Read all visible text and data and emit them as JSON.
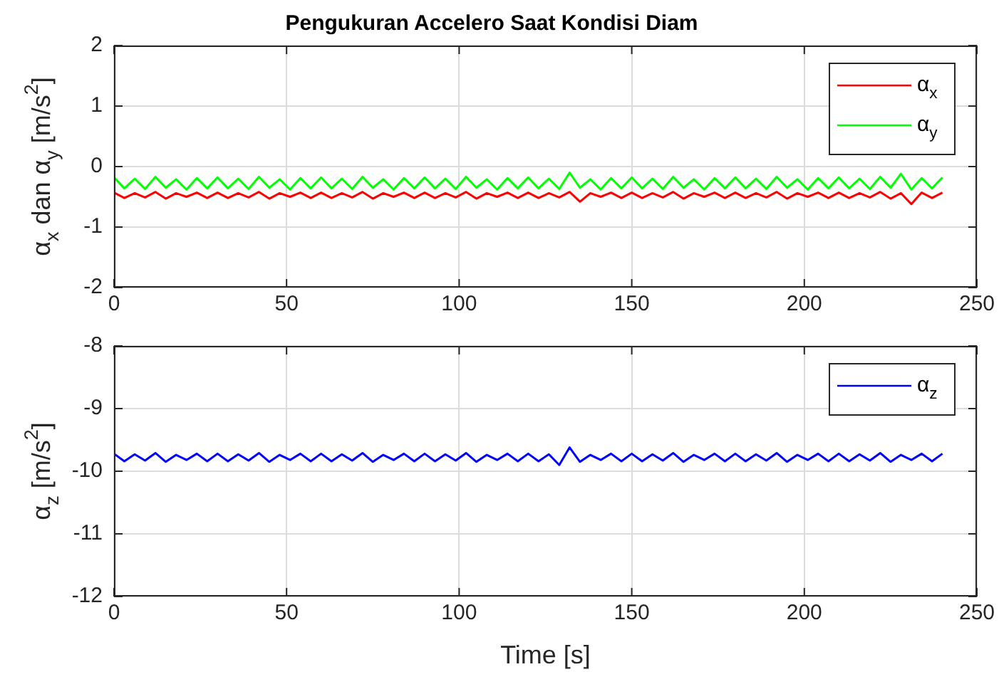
{
  "chart_data": [
    {
      "type": "line",
      "title": "Pengukuran Accelero Saat Kondisi Diam",
      "ylabel": "α$_{x}$ dan α$_{y}$ [m/s$^{2}$]",
      "x": [
        0,
        3,
        6,
        9,
        12,
        15,
        18,
        21,
        24,
        27,
        30,
        33,
        36,
        39,
        42,
        45,
        48,
        51,
        54,
        57,
        60,
        63,
        66,
        69,
        72,
        75,
        78,
        81,
        84,
        87,
        90,
        93,
        96,
        99,
        102,
        105,
        108,
        111,
        114,
        117,
        120,
        123,
        126,
        129,
        132,
        135,
        138,
        141,
        144,
        147,
        150,
        153,
        156,
        159,
        162,
        165,
        168,
        171,
        174,
        177,
        180,
        183,
        186,
        189,
        192,
        195,
        198,
        201,
        204,
        207,
        210,
        213,
        216,
        219,
        222,
        225,
        228,
        231,
        234,
        237,
        240
      ],
      "series": [
        {
          "name": "α$_{x}$",
          "color": "#ff0000",
          "values": [
            -0.43,
            -0.52,
            -0.44,
            -0.51,
            -0.42,
            -0.53,
            -0.44,
            -0.5,
            -0.43,
            -0.52,
            -0.43,
            -0.52,
            -0.44,
            -0.51,
            -0.42,
            -0.53,
            -0.44,
            -0.5,
            -0.43,
            -0.52,
            -0.43,
            -0.52,
            -0.44,
            -0.51,
            -0.42,
            -0.53,
            -0.44,
            -0.5,
            -0.43,
            -0.52,
            -0.43,
            -0.52,
            -0.44,
            -0.51,
            -0.42,
            -0.53,
            -0.44,
            -0.5,
            -0.43,
            -0.52,
            -0.43,
            -0.52,
            -0.44,
            -0.51,
            -0.42,
            -0.58,
            -0.44,
            -0.5,
            -0.43,
            -0.52,
            -0.43,
            -0.52,
            -0.44,
            -0.51,
            -0.42,
            -0.53,
            -0.44,
            -0.5,
            -0.43,
            -0.52,
            -0.43,
            -0.52,
            -0.44,
            -0.51,
            -0.42,
            -0.53,
            -0.44,
            -0.5,
            -0.43,
            -0.52,
            -0.43,
            -0.52,
            -0.44,
            -0.51,
            -0.42,
            -0.53,
            -0.44,
            -0.62,
            -0.43,
            -0.52,
            -0.43
          ]
        },
        {
          "name": "α$_{y}$",
          "color": "#00ff00",
          "values": [
            -0.18,
            -0.36,
            -0.2,
            -0.37,
            -0.17,
            -0.35,
            -0.21,
            -0.38,
            -0.19,
            -0.36,
            -0.18,
            -0.36,
            -0.2,
            -0.37,
            -0.17,
            -0.35,
            -0.21,
            -0.38,
            -0.19,
            -0.36,
            -0.18,
            -0.36,
            -0.2,
            -0.37,
            -0.17,
            -0.35,
            -0.21,
            -0.38,
            -0.19,
            -0.36,
            -0.18,
            -0.36,
            -0.2,
            -0.37,
            -0.17,
            -0.35,
            -0.21,
            -0.38,
            -0.19,
            -0.36,
            -0.18,
            -0.36,
            -0.2,
            -0.37,
            -0.1,
            -0.35,
            -0.21,
            -0.38,
            -0.19,
            -0.36,
            -0.18,
            -0.36,
            -0.2,
            -0.37,
            -0.17,
            -0.35,
            -0.21,
            -0.38,
            -0.19,
            -0.36,
            -0.18,
            -0.36,
            -0.2,
            -0.37,
            -0.17,
            -0.35,
            -0.21,
            -0.38,
            -0.19,
            -0.36,
            -0.18,
            -0.36,
            -0.2,
            -0.37,
            -0.17,
            -0.35,
            -0.12,
            -0.38,
            -0.19,
            -0.36,
            -0.18
          ]
        }
      ],
      "xlim": [
        0,
        250
      ],
      "xticks": [
        0,
        50,
        100,
        150,
        200,
        250
      ],
      "ylim": [
        -2,
        2
      ],
      "yticks": [
        -2,
        -1,
        0,
        1,
        2
      ],
      "grid": true,
      "legend": "top right"
    },
    {
      "type": "line",
      "xlabel": "Time [s]",
      "ylabel": "α$_{z}$ [m/s$^{2}$]",
      "x": [
        0,
        3,
        6,
        9,
        12,
        15,
        18,
        21,
        24,
        27,
        30,
        33,
        36,
        39,
        42,
        45,
        48,
        51,
        54,
        57,
        60,
        63,
        66,
        69,
        72,
        75,
        78,
        81,
        84,
        87,
        90,
        93,
        96,
        99,
        102,
        105,
        108,
        111,
        114,
        117,
        120,
        123,
        126,
        129,
        132,
        135,
        138,
        141,
        144,
        147,
        150,
        153,
        156,
        159,
        162,
        165,
        168,
        171,
        174,
        177,
        180,
        183,
        186,
        189,
        192,
        195,
        198,
        201,
        204,
        207,
        210,
        213,
        216,
        219,
        222,
        225,
        228,
        231,
        234,
        237,
        240
      ],
      "series": [
        {
          "name": "α$_{z}$",
          "color": "#0000ff",
          "values": [
            -9.72,
            -9.84,
            -9.73,
            -9.83,
            -9.71,
            -9.85,
            -9.74,
            -9.82,
            -9.72,
            -9.84,
            -9.72,
            -9.84,
            -9.73,
            -9.83,
            -9.71,
            -9.85,
            -9.74,
            -9.82,
            -9.72,
            -9.84,
            -9.72,
            -9.84,
            -9.73,
            -9.83,
            -9.71,
            -9.85,
            -9.74,
            -9.82,
            -9.72,
            -9.84,
            -9.72,
            -9.84,
            -9.73,
            -9.83,
            -9.71,
            -9.85,
            -9.74,
            -9.82,
            -9.72,
            -9.84,
            -9.72,
            -9.84,
            -9.73,
            -9.9,
            -9.62,
            -9.85,
            -9.74,
            -9.82,
            -9.72,
            -9.84,
            -9.72,
            -9.84,
            -9.73,
            -9.83,
            -9.71,
            -9.85,
            -9.74,
            -9.82,
            -9.72,
            -9.84,
            -9.72,
            -9.84,
            -9.73,
            -9.83,
            -9.71,
            -9.85,
            -9.74,
            -9.82,
            -9.72,
            -9.84,
            -9.72,
            -9.84,
            -9.73,
            -9.83,
            -9.71,
            -9.85,
            -9.74,
            -9.82,
            -9.72,
            -9.84,
            -9.72
          ]
        }
      ],
      "xlim": [
        0,
        250
      ],
      "xticks": [
        0,
        50,
        100,
        150,
        200,
        250
      ],
      "ylim": [
        -12,
        -8
      ],
      "yticks": [
        -12,
        -11,
        -10,
        -9,
        -8
      ],
      "grid": true,
      "legend": "top right"
    }
  ]
}
